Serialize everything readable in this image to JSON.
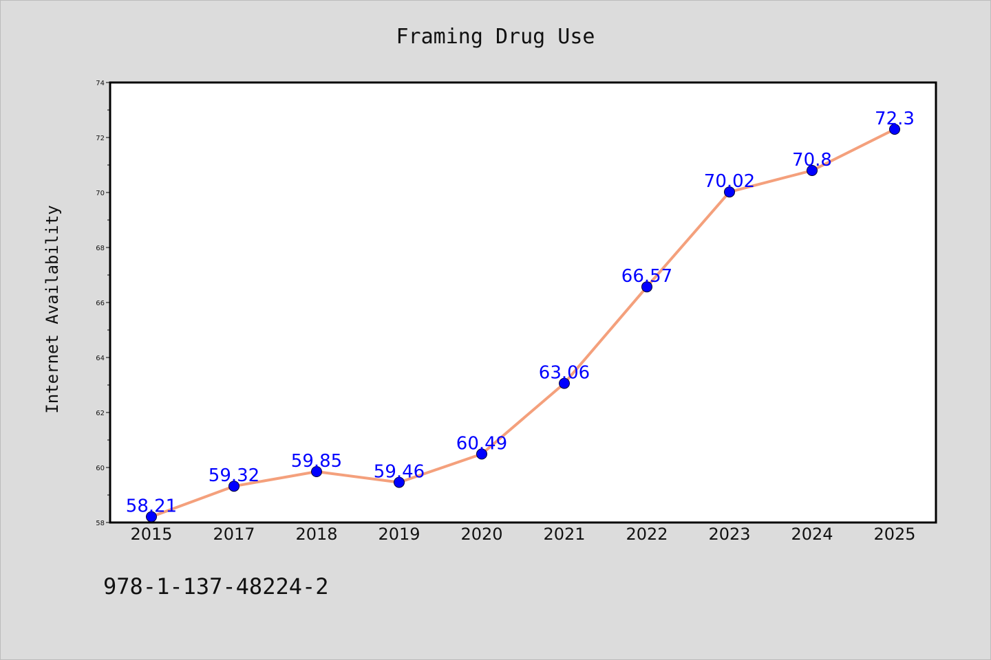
{
  "chart_data": {
    "type": "line",
    "title": "Framing Drug Use",
    "xlabel": "",
    "ylabel": "Internet Availability",
    "categories": [
      "2015",
      "2017",
      "2018",
      "2019",
      "2020",
      "2021",
      "2022",
      "2023",
      "2024",
      "2025"
    ],
    "series": [
      {
        "values": [
          58.21,
          59.32,
          59.85,
          59.46,
          60.49,
          63.06,
          66.57,
          70.02,
          70.8,
          72.3
        ],
        "data_labels": [
          "58.21",
          "59.32",
          "59.85",
          "59.46",
          "60.49",
          "63.06",
          "66.57",
          "70.02",
          "70.8",
          "72.3"
        ],
        "line_color": "#f4a07c",
        "marker_color": "#0000ff"
      }
    ],
    "ylim": [
      58,
      74
    ],
    "yticks": [
      "58",
      "60",
      "62",
      "64",
      "66",
      "68",
      "70",
      "72",
      "74"
    ],
    "grid": false,
    "legend": "none"
  },
  "footer": {
    "isbn": "978-1-137-48224-2"
  },
  "colors": {
    "background": "#dcdcdc",
    "plot_background": "#ffffff",
    "line": "#f4a07c",
    "marker": "#0000ff",
    "label": "#0000ff"
  }
}
